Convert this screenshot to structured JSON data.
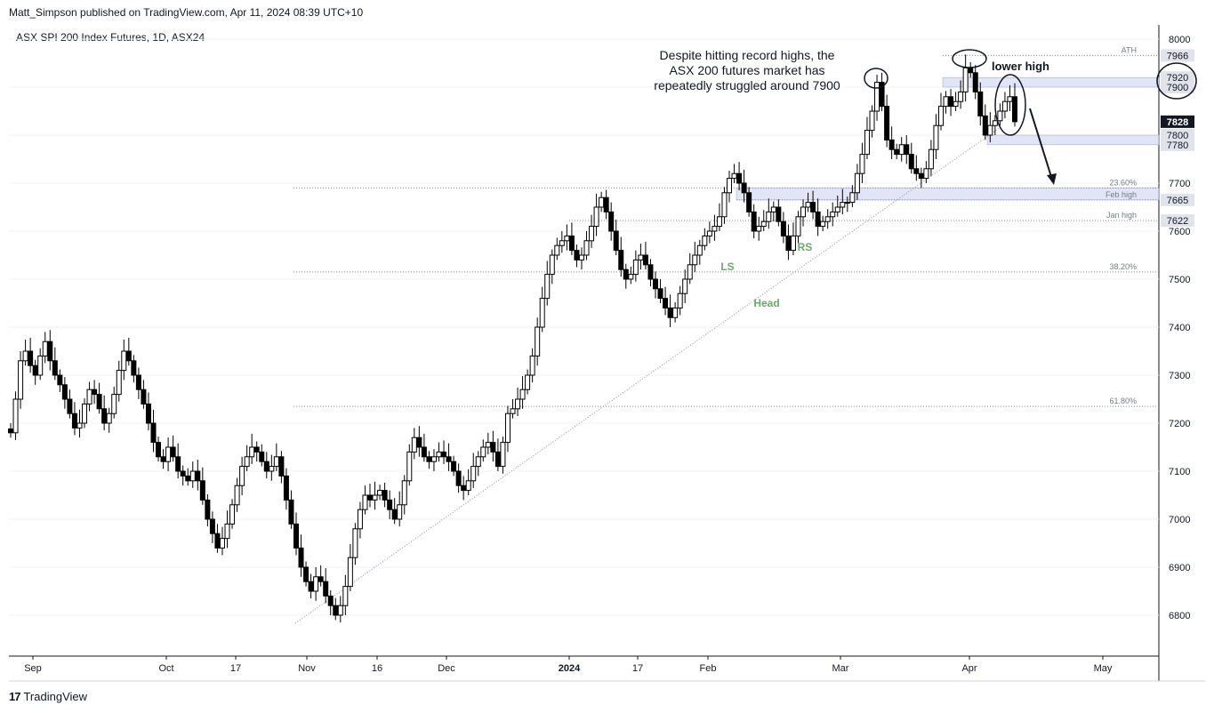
{
  "header": {
    "publisher": "Matt_Simpson published on TradingView.com, Apr 11, 2024 08:39 UTC+10",
    "symbol": "ASX SPI 200 Index Futures, 1D, ASX24"
  },
  "footer": {
    "brand": "TradingView",
    "logo_icon": "tradingview-logo-icon"
  },
  "colors": {
    "up": "#ffffff",
    "down": "#000000",
    "zone": "#d8dcf2",
    "text": "#131722",
    "grid": "#f0f3fa"
  },
  "chart_data": {
    "type": "candlestick",
    "y_ticks": [
      "8000",
      "7900",
      "7800",
      "7700",
      "7600",
      "7500",
      "7400",
      "7300",
      "7200",
      "7100",
      "7000",
      "6900",
      "6800"
    ],
    "ylim": [
      6700,
      8030
    ],
    "x_ticks": [
      "Sep",
      "Oct",
      "17",
      "Nov",
      "16",
      "Dec",
      "2024",
      "17",
      "Feb",
      "Mar",
      "Apr",
      "May"
    ],
    "close_series": [
      7180,
      7250,
      7330,
      7350,
      7320,
      7300,
      7340,
      7370,
      7330,
      7300,
      7280,
      7250,
      7220,
      7190,
      7200,
      7240,
      7270,
      7260,
      7230,
      7200,
      7220,
      7260,
      7310,
      7350,
      7330,
      7300,
      7270,
      7240,
      7200,
      7160,
      7130,
      7120,
      7150,
      7130,
      7100,
      7090,
      7080,
      7100,
      7080,
      7040,
      7000,
      6970,
      6940,
      6960,
      6990,
      7030,
      7070,
      7110,
      7130,
      7150,
      7140,
      7120,
      7100,
      7110,
      7130,
      7090,
      7040,
      6990,
      6940,
      6900,
      6870,
      6850,
      6880,
      6870,
      6840,
      6820,
      6800,
      6820,
      6860,
      6920,
      6980,
      7020,
      7050,
      7040,
      7050,
      7060,
      7040,
      7020,
      7000,
      7030,
      7080,
      7140,
      7170,
      7150,
      7130,
      7120,
      7130,
      7140,
      7130,
      7120,
      7100,
      7070,
      7060,
      7080,
      7110,
      7130,
      7150,
      7160,
      7140,
      7110,
      7160,
      7220,
      7230,
      7250,
      7270,
      7300,
      7340,
      7400,
      7460,
      7510,
      7550,
      7570,
      7580,
      7590,
      7560,
      7540,
      7550,
      7580,
      7610,
      7650,
      7670,
      7640,
      7600,
      7560,
      7520,
      7500,
      7510,
      7540,
      7550,
      7530,
      7500,
      7480,
      7460,
      7440,
      7420,
      7440,
      7470,
      7500,
      7530,
      7550,
      7570,
      7590,
      7600,
      7610,
      7630,
      7680,
      7710,
      7720,
      7700,
      7680,
      7640,
      7600,
      7610,
      7620,
      7640,
      7650,
      7620,
      7590,
      7560,
      7590,
      7630,
      7650,
      7660,
      7640,
      7610,
      7620,
      7630,
      7640,
      7650,
      7660,
      7660,
      7680,
      7720,
      7760,
      7810,
      7850,
      7910,
      7860,
      7790,
      7770,
      7760,
      7780,
      7760,
      7730,
      7720,
      7710,
      7730,
      7770,
      7820,
      7860,
      7880,
      7860,
      7870,
      7890,
      7940,
      7930,
      7890,
      7840,
      7800,
      7820,
      7830,
      7850,
      7870,
      7880,
      7828
    ],
    "levels": [
      {
        "label": "ATH",
        "value": 7966
      },
      {
        "label": "23.60%",
        "value": 7690
      },
      {
        "label": "Feb high",
        "value": 7665
      },
      {
        "label": "Jan high",
        "value": 7622
      },
      {
        "label": "38.20%",
        "value": 7515
      },
      {
        "label": "61.80%",
        "value": 7235
      }
    ],
    "price_tags": [
      {
        "value": 7966,
        "label": "7966"
      },
      {
        "value": 7920,
        "label": "7920"
      },
      {
        "value": 7900,
        "label": "7900"
      },
      {
        "value": 7828,
        "label": "7828",
        "current": true
      },
      {
        "value": 7800,
        "label": "7800"
      },
      {
        "value": 7780,
        "label": "7780"
      },
      {
        "value": 7665,
        "label": "7665"
      },
      {
        "value": 7622,
        "label": "7622"
      }
    ],
    "zones": [
      {
        "from": 7900,
        "to": 7920
      },
      {
        "from": 7780,
        "to": 7800
      },
      {
        "from": 7665,
        "to": 7690
      }
    ],
    "annotations": {
      "note_lines": [
        "Despite hitting record highs, the",
        "ASX 200 futures market has",
        "repeatedly struggled around 7900"
      ],
      "lower_high": "lower high",
      "ls": "LS",
      "head": "Head",
      "rs": "RS"
    }
  }
}
